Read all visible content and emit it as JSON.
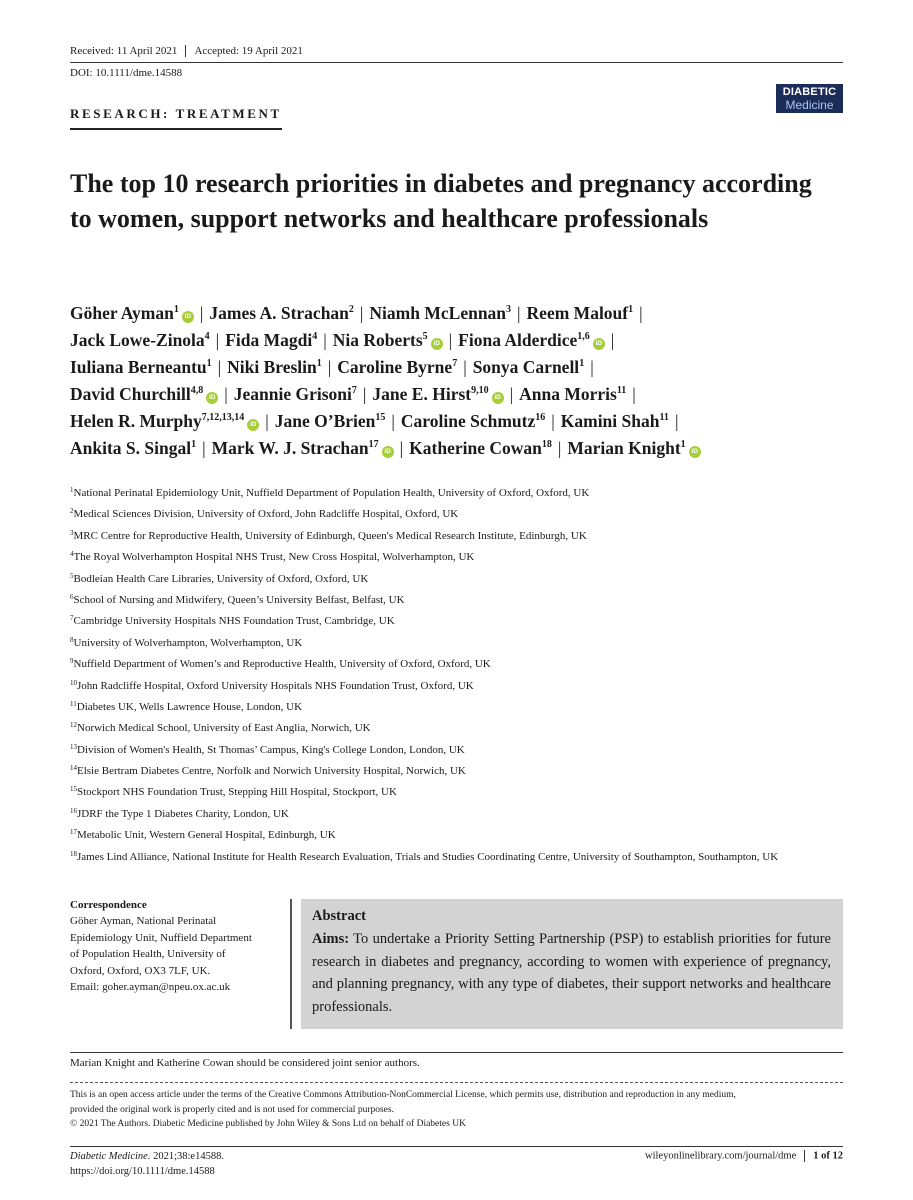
{
  "header": {
    "received": "Received: 11 April 2021",
    "accepted": "Accepted: 19 April 2021",
    "doi": "DOI: 10.1111/dme.14588",
    "logo_line1": "DIABETIC",
    "logo_line2": "Medicine"
  },
  "section_label": "RESEARCH: TREATMENT",
  "title": "The top 10 research priorities in diabetes and pregnancy according to women, support networks and healthcare professionals",
  "authors": [
    {
      "name": "Göher Ayman",
      "sup": "1",
      "orcid": true
    },
    {
      "name": "James A. Strachan",
      "sup": "2",
      "orcid": false
    },
    {
      "name": "Niamh McLennan",
      "sup": "3",
      "orcid": false
    },
    {
      "name": "Reem Malouf",
      "sup": "1",
      "orcid": false
    },
    {
      "name": "Jack Lowe-Zinola",
      "sup": "4",
      "orcid": false
    },
    {
      "name": "Fida Magdi",
      "sup": "4",
      "orcid": false
    },
    {
      "name": "Nia Roberts",
      "sup": "5",
      "orcid": true
    },
    {
      "name": "Fiona Alderdice",
      "sup": "1,6",
      "orcid": true
    },
    {
      "name": "Iuliana Berneantu",
      "sup": "1",
      "orcid": false
    },
    {
      "name": "Niki Breslin",
      "sup": "1",
      "orcid": false
    },
    {
      "name": "Caroline Byrne",
      "sup": "7",
      "orcid": false
    },
    {
      "name": "Sonya Carnell",
      "sup": "1",
      "orcid": false
    },
    {
      "name": "David Churchill",
      "sup": "4,8",
      "orcid": true
    },
    {
      "name": "Jeannie Grisoni",
      "sup": "7",
      "orcid": false
    },
    {
      "name": "Jane E. Hirst",
      "sup": "9,10",
      "orcid": true
    },
    {
      "name": "Anna Morris",
      "sup": "11",
      "orcid": false
    },
    {
      "name": "Helen R. Murphy",
      "sup": "7,12,13,14",
      "orcid": true
    },
    {
      "name": "Jane O’Brien",
      "sup": "15",
      "orcid": false
    },
    {
      "name": "Caroline Schmutz",
      "sup": "16",
      "orcid": false
    },
    {
      "name": "Kamini Shah",
      "sup": "11",
      "orcid": false
    },
    {
      "name": "Ankita S. Singal",
      "sup": "1",
      "orcid": false
    },
    {
      "name": "Mark W. J. Strachan",
      "sup": "17",
      "orcid": true
    },
    {
      "name": "Katherine Cowan",
      "sup": "18",
      "orcid": false
    },
    {
      "name": "Marian Knight",
      "sup": "1",
      "orcid": true
    }
  ],
  "author_separator": "|",
  "orcid_label": "iD",
  "affiliations": [
    {
      "num": "1",
      "text": "National Perinatal Epidemiology Unit, Nuffield Department of Population Health, University of Oxford, Oxford, UK"
    },
    {
      "num": "2",
      "text": "Medical Sciences Division, University of Oxford, John Radcliffe Hospital, Oxford, UK"
    },
    {
      "num": "3",
      "text": "MRC Centre for Reproductive Health, University of Edinburgh, Queen's Medical Research Institute, Edinburgh, UK"
    },
    {
      "num": "4",
      "text": "The Royal Wolverhampton Hospital NHS Trust, New Cross Hospital, Wolverhampton, UK"
    },
    {
      "num": "5",
      "text": "Bodleian Health Care Libraries, University of Oxford, Oxford, UK"
    },
    {
      "num": "6",
      "text": "School of Nursing and Midwifery, Queen’s University Belfast, Belfast, UK"
    },
    {
      "num": "7",
      "text": "Cambridge University Hospitals NHS Foundation Trust, Cambridge, UK"
    },
    {
      "num": "8",
      "text": "University of Wolverhampton, Wolverhampton, UK"
    },
    {
      "num": "9",
      "text": "Nuffield Department of Women’s and Reproductive Health, University of Oxford, Oxford, UK"
    },
    {
      "num": "10",
      "text": "John Radcliffe Hospital, Oxford University Hospitals NHS Foundation Trust, Oxford, UK"
    },
    {
      "num": "11",
      "text": "Diabetes UK, Wells Lawrence House, London, UK"
    },
    {
      "num": "12",
      "text": "Norwich Medical School, University of East Anglia, Norwich, UK"
    },
    {
      "num": "13",
      "text": "Division of Women's Health, St Thomas’ Campus, King's College London, London, UK"
    },
    {
      "num": "14",
      "text": "Elsie Bertram Diabetes Centre, Norfolk and Norwich University Hospital, Norwich, UK"
    },
    {
      "num": "15",
      "text": "Stockport NHS Foundation Trust, Stepping Hill Hospital, Stockport, UK"
    },
    {
      "num": "16",
      "text": "JDRF the Type 1 Diabetes Charity, London, UK"
    },
    {
      "num": "17",
      "text": "Metabolic Unit, Western General Hospital, Edinburgh, UK"
    },
    {
      "num": "18",
      "text": "James Lind Alliance, National Institute for Health Research Evaluation, Trials and Studies Coordinating Centre, University of Southampton, Southampton, UK"
    }
  ],
  "correspondence": {
    "heading": "Correspondence",
    "lines": [
      "Göher Ayman, National Perinatal",
      "Epidemiology Unit, Nuffield Department",
      "of Population Health, University of",
      "Oxford, Oxford, OX3 7LF, UK.",
      "Email: goher.ayman@npeu.ox.ac.uk"
    ]
  },
  "abstract": {
    "heading": "Abstract",
    "aims_label": "Aims:",
    "aims_text": "To undertake a Priority Setting Partnership (PSP) to establish priorities for future research in diabetes and pregnancy, according to women with experience of pregnancy, and planning pregnancy, with any type of diabetes, their support networks and healthcare professionals."
  },
  "joint_note": "Marian Knight and Katherine Cowan should be considered joint senior authors.",
  "license_lines": [
    "This is an open access article under the terms of the Creative Commons Attribution-NonCommercial License, which permits use, distribution and reproduction in any medium,",
    "provided the original work is properly cited and is not used for commercial purposes.",
    "© 2021 The Authors. Diabetic Medicine published by John Wiley & Sons Ltd on behalf of Diabetes UK"
  ],
  "footer": {
    "journal": "Diabetic Medicine.",
    "citation": " 2021;38:e14588.",
    "doi_url": "https://doi.org/10.1111/dme.14588",
    "site": "wileyonlinelibrary.com/journal/dme",
    "page": "1 of 12"
  }
}
